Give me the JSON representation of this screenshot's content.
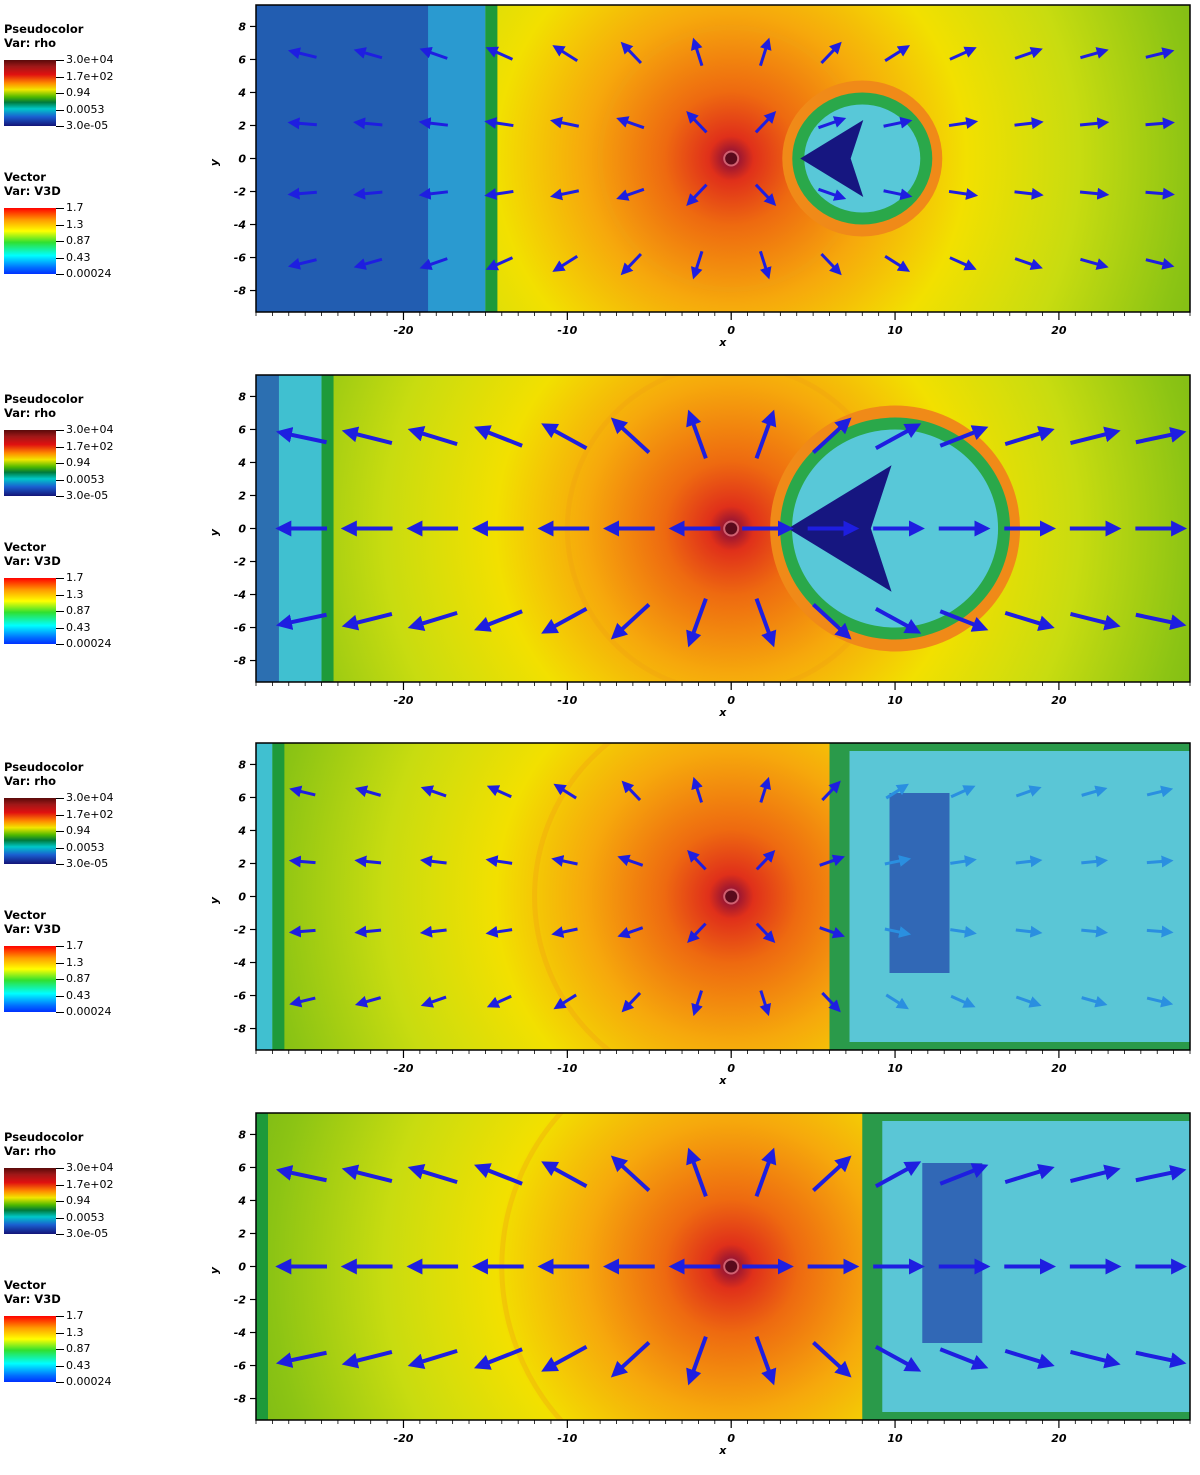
{
  "panels": [
    {
      "shock_x": -15,
      "bubble": "small",
      "bubble_x": 8,
      "arrow_scale": 0.9
    },
    {
      "shock_x": -25,
      "bubble": "large",
      "bubble_x": 10,
      "arrow_scale": 1.15
    },
    {
      "shock_x": -28,
      "bubble": "right",
      "bubble_x": 18,
      "arrow_scale": 0.8
    },
    {
      "shock_x": -29,
      "bubble": "right2",
      "bubble_x": 20,
      "arrow_scale": 1.15
    }
  ],
  "legend": {
    "pseudocolor_title": "Pseudocolor",
    "pseudocolor_var": "Var: rho",
    "rho_ticks": [
      "3.0e+04",
      "1.7e+02",
      "0.94",
      "0.0053",
      "3.0e-05"
    ],
    "vector_title": "Vector",
    "vector_var": "Var: V3D",
    "v_ticks": [
      "1.7",
      "1.3",
      "0.87",
      "0.43",
      "0.00024"
    ]
  },
  "axes": {
    "xlabel": "x",
    "ylabel": "y",
    "x_ticks": [
      -20,
      -10,
      0,
      10,
      20
    ],
    "y_ticks": [
      8,
      6,
      4,
      2,
      0,
      -2,
      -4,
      -6,
      -8
    ],
    "xlim": [
      -29,
      28
    ],
    "ylim": [
      -9.3,
      9.3
    ]
  },
  "colors": {
    "arrow": "#1e1ee0",
    "arrow_light": "#2a8fe0",
    "arrow_orange": "#f0a020"
  }
}
